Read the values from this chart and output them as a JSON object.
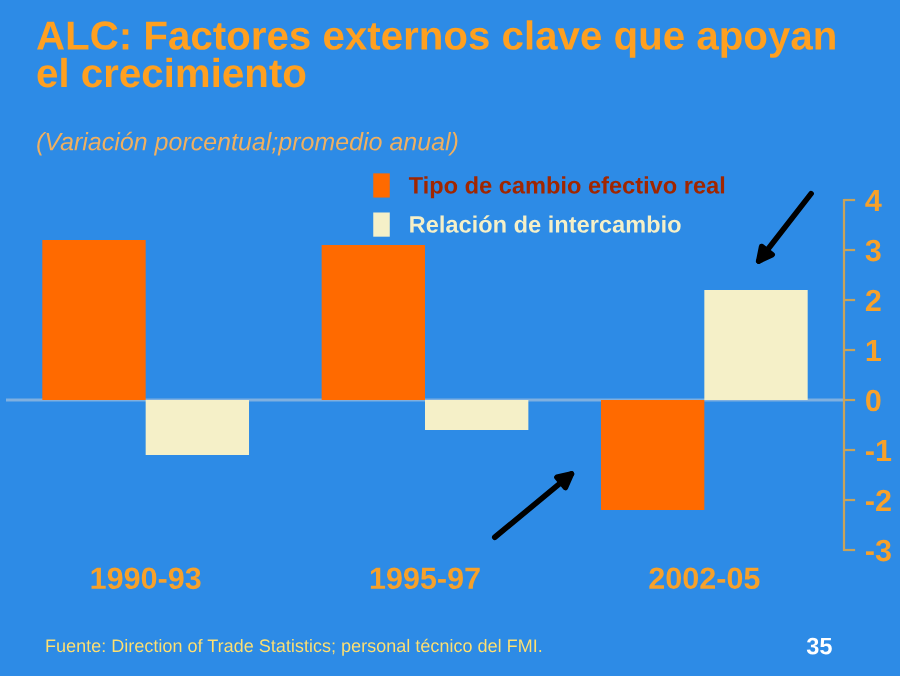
{
  "chart_data": {
    "type": "bar",
    "title": "ALC: Factores externos clave que apoyan\nel crecimiento",
    "subtitle": "(Variación porcentual;promedio anual)",
    "categories": [
      "1990-93",
      "1995-97",
      "2002-05"
    ],
    "series": [
      {
        "name": "Tipo de cambio efectivo real",
        "color": "#ff6a00",
        "values": [
          3.2,
          3.1,
          -2.2
        ]
      },
      {
        "name": "Relación de intercambio",
        "color": "#f5f0c8",
        "values": [
          -1.1,
          -0.6,
          2.2
        ]
      }
    ],
    "ref_lines": [
      {
        "axis": "y",
        "value": 0,
        "color": "#7fb0e0"
      }
    ],
    "ylim": [
      -3,
      4
    ],
    "yticks": [
      -3,
      -2,
      -1,
      0,
      1,
      2,
      3,
      4
    ],
    "grid": false,
    "legend": "top right",
    "annotations": [
      "Fuente: Direction of Trade Statistics; personal técnico del FMI.",
      "35"
    ]
  }
}
